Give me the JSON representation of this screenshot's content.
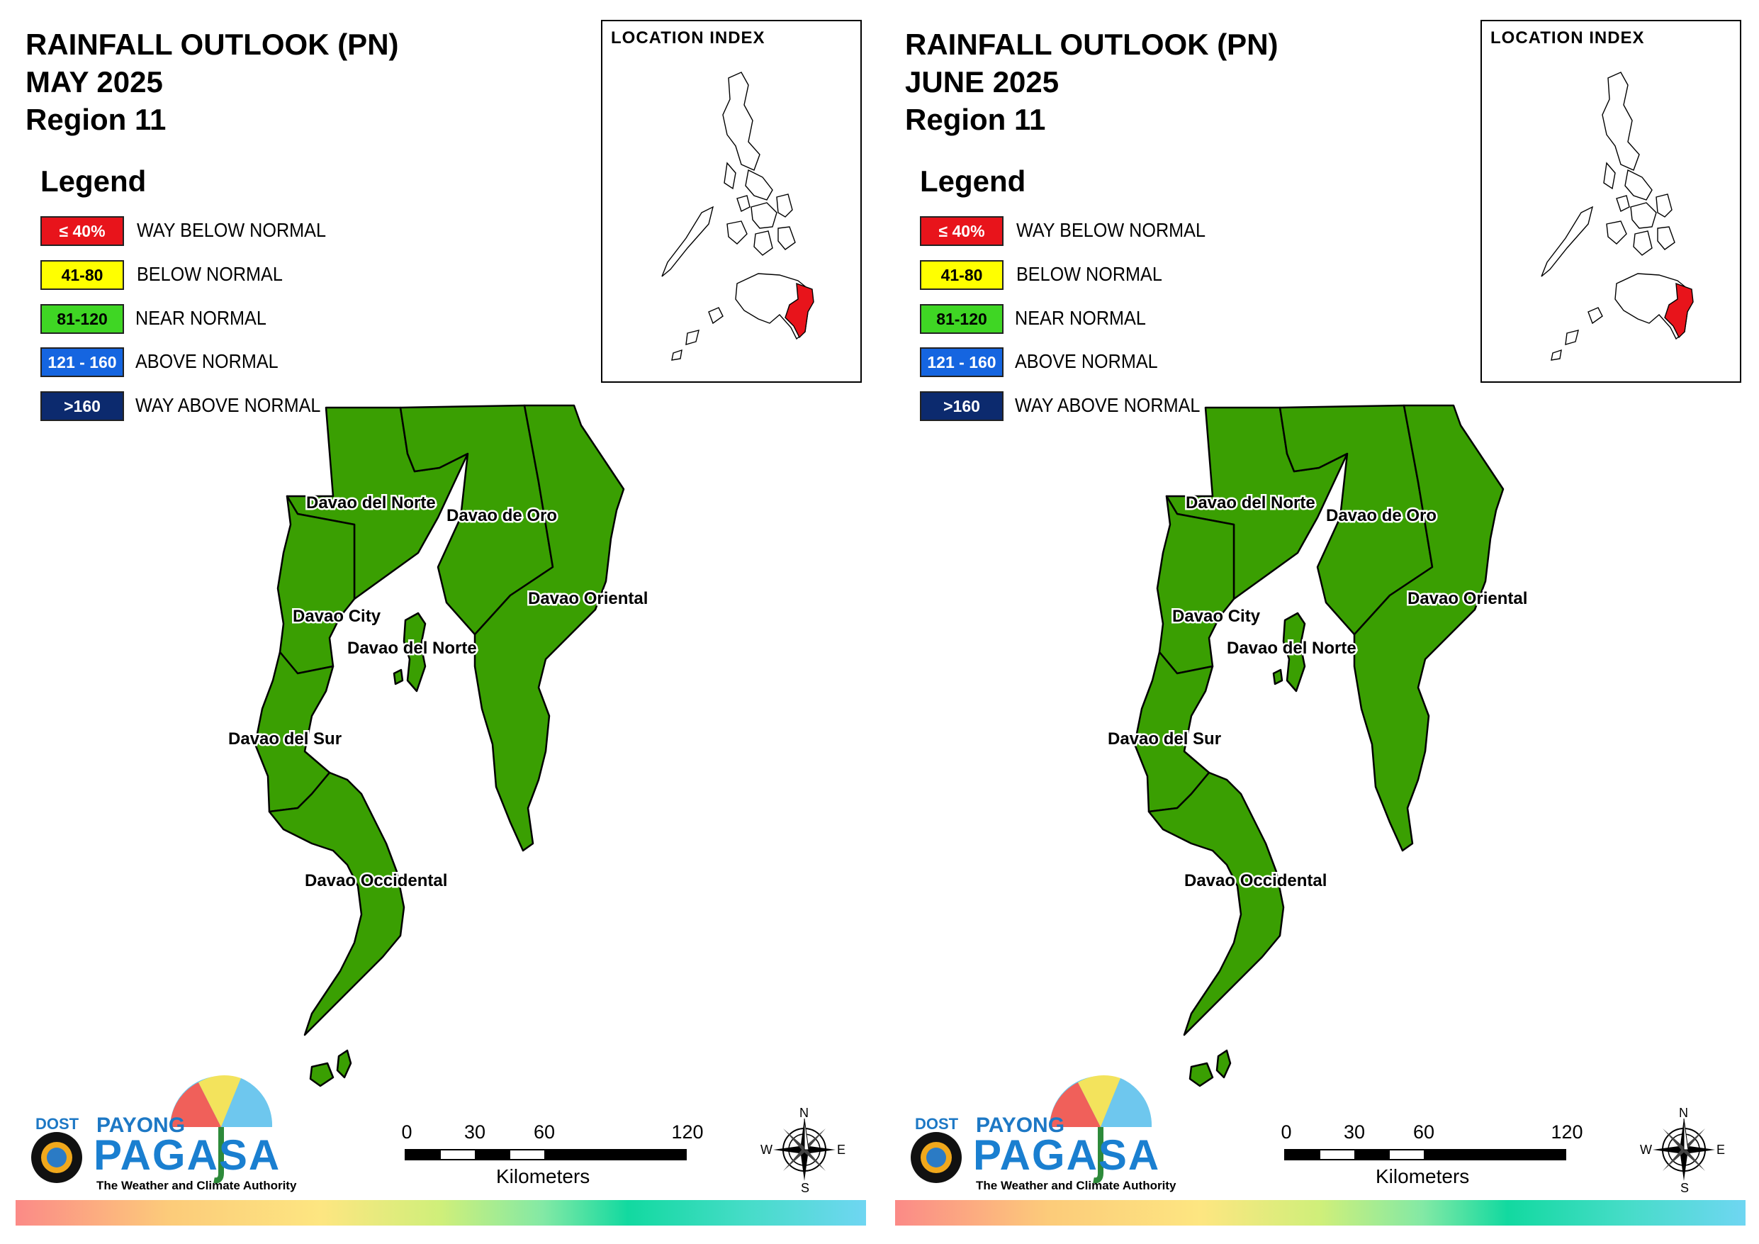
{
  "panels": [
    {
      "title": {
        "line1": "RAINFALL OUTLOOK (PN)",
        "line2": "MAY 2025",
        "line3": "Region 11"
      },
      "index_label": "LOCATION INDEX"
    },
    {
      "title": {
        "line1": "RAINFALL OUTLOOK (PN)",
        "line2": "JUNE 2025",
        "line3": "Region 11"
      },
      "index_label": "LOCATION INDEX"
    }
  ],
  "legend": {
    "title": "Legend",
    "items": [
      {
        "range": "≤ 40%",
        "label": "WAY BELOW NORMAL",
        "color": "#e8141b",
        "text_color": "#ffffff"
      },
      {
        "range": "41-80",
        "label": "BELOW NORMAL",
        "color": "#ffff00",
        "text_color": "#000000"
      },
      {
        "range": "81-120",
        "label": "NEAR NORMAL",
        "color": "#3fd624",
        "text_color": "#000000"
      },
      {
        "range": "121 - 160",
        "label": "ABOVE NORMAL",
        "color": "#1565e0",
        "text_color": "#ffffff"
      },
      {
        "range": ">160",
        "label": "WAY ABOVE NORMAL",
        "color": "#0c2a6e",
        "text_color": "#ffffff"
      }
    ]
  },
  "provinces": {
    "davao_del_norte": "Davao del Norte",
    "davao_de_oro": "Davao de Oro",
    "davao_oriental": "Davao Oriental",
    "davao_city": "Davao City",
    "davao_del_norte_2": "Davao del Norte",
    "davao_del_sur": "Davao del Sur",
    "davao_occidental": "Davao Occidental"
  },
  "map_fill_color": "#3a9f02",
  "highlight_color": "#e8141b",
  "scale": {
    "ticks": [
      "0",
      "30",
      "60",
      "120"
    ],
    "unit": "Kilometers"
  },
  "compass": {
    "n": "N",
    "s": "S",
    "e": "E",
    "w": "W"
  },
  "logo": {
    "dost": "DOST",
    "payong": "PAYONG",
    "pagasa": "PAGASA",
    "tagline": "The Weather and Climate Authority"
  }
}
